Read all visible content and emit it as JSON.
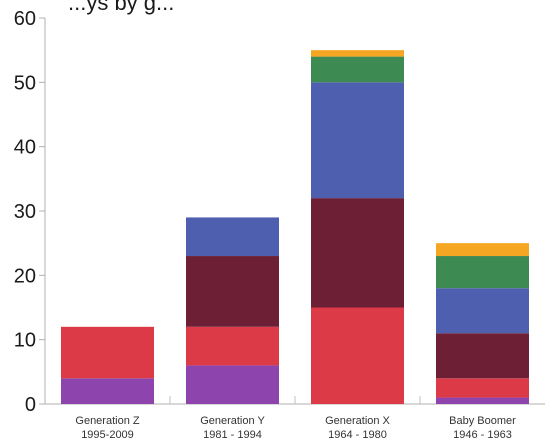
{
  "chart_data": {
    "type": "bar",
    "stacked": true,
    "title": "...ys by g...",
    "categories": [
      [
        "Generation Z",
        "1995-2009"
      ],
      [
        "Generation Y",
        "1981 - 1994"
      ],
      [
        "Generation X",
        "1964 - 1980"
      ],
      [
        "Baby Boomer",
        "1946 - 1963"
      ]
    ],
    "series": [
      {
        "color": "#8e44ad",
        "values": [
          4,
          6,
          0,
          1
        ]
      },
      {
        "color": "#dd3a48",
        "values": [
          8,
          6,
          15,
          3
        ]
      },
      {
        "color": "#6d1f36",
        "values": [
          0,
          11,
          17,
          7
        ]
      },
      {
        "color": "#4f5fb0",
        "values": [
          0,
          6,
          18,
          7
        ]
      },
      {
        "color": "#3d8a52",
        "values": [
          0,
          0,
          4,
          5
        ]
      },
      {
        "color": "#f5a623",
        "values": [
          0,
          0,
          1,
          2
        ]
      }
    ],
    "yticks": [
      0,
      10,
      20,
      30,
      40,
      50,
      60
    ],
    "ylim": [
      0,
      60
    ],
    "xlabel": "",
    "ylabel": "",
    "grid": false,
    "legend": "none"
  }
}
